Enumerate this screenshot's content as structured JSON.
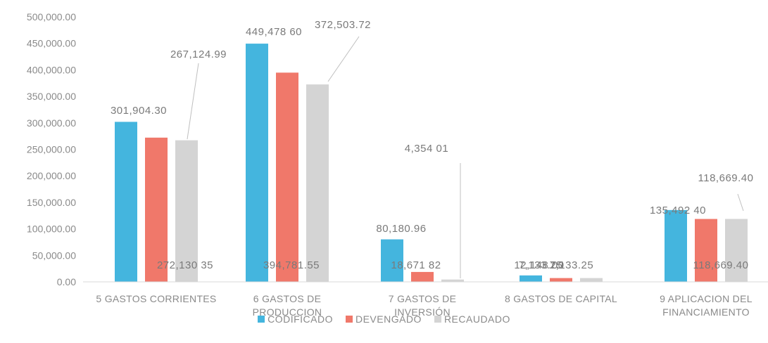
{
  "chart_data": {
    "type": "bar",
    "categories": [
      [
        "5 GASTOS CORRIENTES"
      ],
      [
        "6 GASTOS DE",
        "PRODUCCION"
      ],
      [
        "7 GASTOS DE",
        "INVERSIÓN"
      ],
      [
        "8 GASTOS DE CAPITAL"
      ],
      [
        "9 APLICACION DEL",
        "FINANCIAMIENTO"
      ]
    ],
    "series": [
      {
        "name": "CODIFICADO",
        "color": "#44b5de",
        "values": [
          301904.3,
          449478.6,
          80180.96,
          12148.0,
          135492.4
        ],
        "labels": [
          "301,904.30",
          "449,478 60",
          "80,180.96",
          "12,148.00",
          "135,492 40"
        ]
      },
      {
        "name": "DEVENGADO",
        "color": "#f0786a",
        "values": [
          272130.35,
          394781.55,
          18671.82,
          7133.25,
          118669.4
        ],
        "labels": [
          "272,130 35",
          "394,781.55",
          "18,671 82",
          "7,133.25",
          "118,669.40"
        ]
      },
      {
        "name": "RECAUDADO",
        "color": "#d4d4d4",
        "values": [
          267124.99,
          372503.72,
          4354.01,
          7133.25,
          118669.4
        ],
        "labels": [
          "267,124.99",
          "372,503.72",
          "4,354 01",
          "7,133.25",
          "118,669.40"
        ]
      }
    ],
    "ylim": [
      0,
      500000
    ],
    "yticks": [
      "0.00",
      "50,000.00",
      "100,000.00",
      "150,000.00",
      "200,000.00",
      "250,000.00",
      "300,000.00",
      "350,000.00",
      "400,000.00",
      "450,000.00",
      "500,000.00"
    ],
    "grid": false,
    "legend_position": "bottom"
  }
}
